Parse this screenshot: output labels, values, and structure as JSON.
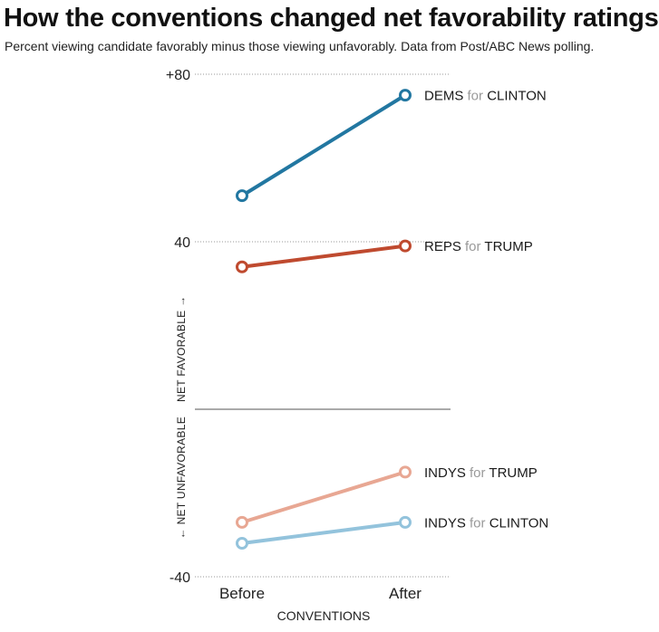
{
  "title": "How the conventions changed net favorability ratings",
  "subtitle": "Percent viewing candidate favorably minus those viewing unfavorably. Data from Post/ABC News polling.",
  "colors": {
    "dems_clinton": "#2277a1",
    "reps_trump": "#bf4a2f",
    "indys_trump": "#e8a793",
    "indys_clinton": "#93c3dc",
    "label_muted": "#9a9a9a",
    "axis_text": "#222222"
  },
  "chart_data": {
    "type": "line",
    "title": "How the conventions changed net favorability ratings",
    "subtitle": "Percent viewing candidate favorably minus those viewing unfavorably. Data from Post/ABC News polling.",
    "categories": [
      "Before",
      "After"
    ],
    "xlabel": "CONVENTIONS",
    "ylabel_top": "NET FAVORABLE →",
    "ylabel_bottom": "← NET UNFAVORABLE",
    "ylim": [
      -40,
      80
    ],
    "yticks": [
      {
        "value": 80,
        "label": "+80"
      },
      {
        "value": 40,
        "label": "40"
      },
      {
        "value": -40,
        "label": "-40"
      }
    ],
    "grid": "dotted at labeled ticks, solid line at zero",
    "legend": "direct labels at right end of each line",
    "series": [
      {
        "name": "DEMS for CLINTON",
        "group": "DEMS",
        "conj": "for",
        "candidate": "CLINTON",
        "color_key": "dems_clinton",
        "values": [
          51,
          75
        ]
      },
      {
        "name": "REPS for TRUMP",
        "group": "REPS",
        "conj": "for",
        "candidate": "TRUMP",
        "color_key": "reps_trump",
        "values": [
          34,
          39
        ]
      },
      {
        "name": "INDYS for TRUMP",
        "group": "INDYS",
        "conj": "for",
        "candidate": "TRUMP",
        "color_key": "indys_trump",
        "values": [
          -27,
          -15
        ]
      },
      {
        "name": "INDYS for CLINTON",
        "group": "INDYS",
        "conj": "for",
        "candidate": "CLINTON",
        "color_key": "indys_clinton",
        "values": [
          -32,
          -27
        ]
      }
    ]
  }
}
